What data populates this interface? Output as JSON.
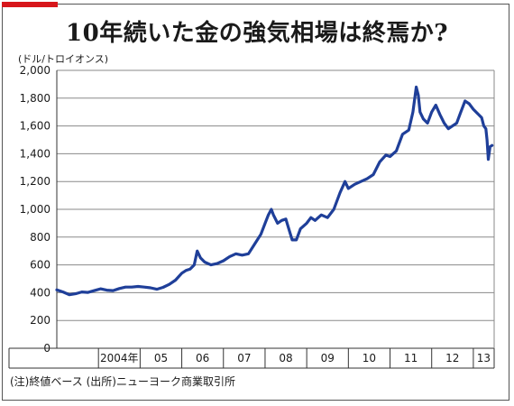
{
  "chart_data": {
    "type": "line",
    "title": "10年続いた金の強気相場は終焉か?",
    "unit_label": "(ドル/トロイオンス)",
    "note": "(注)終値ベース (出所)ニューヨーク商業取引所",
    "ylim": [
      0,
      2000
    ],
    "y_ticks": [
      0,
      200,
      400,
      600,
      800,
      1000,
      1200,
      1400,
      1600,
      1800,
      2000
    ],
    "y_tick_labels": [
      "0",
      "200",
      "400",
      "600",
      "800",
      "1,000",
      "1,200",
      "1,400",
      "1,600",
      "1,800",
      "2,000"
    ],
    "x_categories": [
      "2004年",
      "05",
      "06",
      "07",
      "08",
      "09",
      "10",
      "11",
      "12",
      "13"
    ],
    "grid": true,
    "series": [
      {
        "color": "#1f3f99",
        "x": [
          2003.0,
          2003.15,
          2003.3,
          2003.45,
          2003.6,
          2003.75,
          2003.9,
          2004.05,
          2004.2,
          2004.35,
          2004.5,
          2004.65,
          2004.8,
          2004.95,
          2005.1,
          2005.25,
          2005.4,
          2005.55,
          2005.7,
          2005.85,
          2006.0,
          2006.1,
          2006.2,
          2006.3,
          2006.37,
          2006.45,
          2006.55,
          2006.7,
          2006.85,
          2007.0,
          2007.15,
          2007.3,
          2007.45,
          2007.6,
          2007.75,
          2007.9,
          2008.0,
          2008.08,
          2008.15,
          2008.2,
          2008.3,
          2008.4,
          2008.5,
          2008.58,
          2008.65,
          2008.75,
          2008.85,
          2009.0,
          2009.1,
          2009.2,
          2009.35,
          2009.5,
          2009.65,
          2009.8,
          2009.92,
          2010.0,
          2010.15,
          2010.3,
          2010.45,
          2010.6,
          2010.75,
          2010.9,
          2011.0,
          2011.15,
          2011.3,
          2011.45,
          2011.55,
          2011.63,
          2011.68,
          2011.72,
          2011.8,
          2011.9,
          2012.0,
          2012.1,
          2012.2,
          2012.3,
          2012.4,
          2012.5,
          2012.6,
          2012.7,
          2012.8,
          2012.9,
          2013.0,
          2013.1,
          2013.2,
          2013.25,
          2013.3,
          2013.33,
          2013.36,
          2013.4,
          2013.45
        ],
        "y": [
          420,
          405,
          385,
          392,
          405,
          402,
          415,
          428,
          418,
          415,
          430,
          440,
          440,
          445,
          440,
          435,
          425,
          438,
          460,
          490,
          540,
          560,
          570,
          600,
          700,
          650,
          620,
          600,
          610,
          630,
          660,
          680,
          670,
          680,
          750,
          820,
          900,
          960,
          1000,
          960,
          900,
          920,
          930,
          850,
          780,
          780,
          860,
          900,
          940,
          920,
          960,
          940,
          1000,
          1120,
          1200,
          1150,
          1180,
          1200,
          1220,
          1250,
          1340,
          1390,
          1380,
          1420,
          1540,
          1570,
          1700,
          1880,
          1820,
          1700,
          1650,
          1620,
          1700,
          1750,
          1680,
          1620,
          1580,
          1600,
          1620,
          1700,
          1780,
          1760,
          1720,
          1690,
          1660,
          1600,
          1580,
          1500,
          1360,
          1450,
          1460
        ]
      }
    ]
  }
}
